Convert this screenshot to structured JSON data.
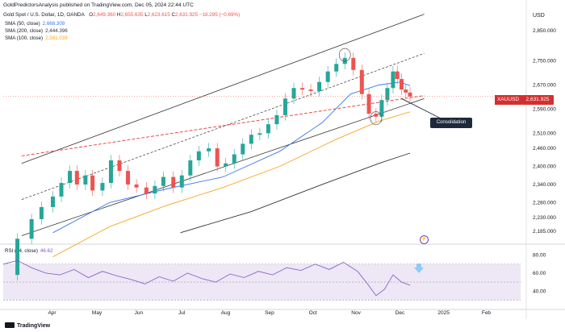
{
  "header": {
    "publisher_line": "GoldPredictorsAnalysis published on TradingView.com, Dec 05, 2024 22:44 UTC",
    "instrument": "Gold Spot / U.S. Dollar, 1D, OANDA",
    "o_label": "O",
    "o_value": "2,649.360",
    "h_label": "H",
    "h_value": "2,655.635",
    "l_label": "L",
    "l_value": "2,623.615",
    "c_label": "C",
    "c_value": "2,631.925",
    "change": "−18.295 (−0.69%)"
  },
  "indicators": {
    "sma50_label": "SMA (50, close)",
    "sma50_value": "2,668.309",
    "sma200_label": "SMA (200, close)",
    "sma200_value": "2,444.396",
    "sma100_label": "SMA (100, close)",
    "sma100_value": "2,581.039",
    "rsi_label": "RSI (14, close)",
    "rsi_value": "46.62"
  },
  "price_axis": {
    "currency": "USD"
  },
  "price_tag": {
    "symbol": "XAUUSD",
    "value": "2,631.925"
  },
  "annotation": {
    "consolidation": "Consolidation"
  },
  "footer": {
    "brand": "TradingView"
  },
  "colors": {
    "sma50": "#3b78e7",
    "sma100": "#f5a623",
    "sma200": "#333333",
    "up": "#26a69a",
    "down": "#ef5350",
    "rsi": "#7e57c2",
    "resistance": "#e53935"
  },
  "chart_data": [
    {
      "type": "line",
      "title": "",
      "y_unit": "USD",
      "y_ticks": [
        2185,
        2230,
        2280,
        2340,
        2400,
        2460,
        2510,
        2590,
        2670,
        2750,
        2850
      ],
      "y_tick_labels": [
        "2,185.000",
        "2,230.000",
        "2,280.000",
        "2,340.000",
        "2,400.000",
        "2,460.000",
        "2,510.000",
        "2,590.000",
        "2,670.000",
        "2,750.000",
        "2,850.000"
      ],
      "ylim": [
        2150,
        2920
      ],
      "x_tick_labels": [
        "Apr",
        "May",
        "Jun",
        "Jul",
        "Aug",
        "Sep",
        "Oct",
        "Nov",
        "Dec",
        "2025",
        "Feb"
      ],
      "x_tick_days": [
        60,
        91,
        121,
        152,
        182,
        213,
        244,
        274,
        305,
        335,
        366
      ],
      "xlim": [
        25,
        390
      ],
      "series": [
        {
          "name": "Gold Spot / U.S. Dollar",
          "x": [
            25,
            35,
            45,
            52,
            60,
            66,
            72,
            77,
            83,
            88,
            95,
            101,
            107,
            113,
            119,
            126,
            132,
            138,
            145,
            151,
            157,
            163,
            170,
            176,
            182,
            188,
            194,
            200,
            206,
            212,
            218,
            224,
            230,
            236,
            242,
            248,
            254,
            260,
            266,
            272,
            278,
            283,
            288,
            292,
            296,
            300,
            303,
            306,
            309,
            312
          ],
          "y": [
            2040,
            2160,
            2225,
            2265,
            2300,
            2345,
            2385,
            2340,
            2370,
            2320,
            2345,
            2420,
            2385,
            2340,
            2330,
            2310,
            2335,
            2365,
            2330,
            2370,
            2420,
            2450,
            2460,
            2400,
            2410,
            2440,
            2475,
            2505,
            2510,
            2540,
            2570,
            2625,
            2660,
            2655,
            2650,
            2680,
            2715,
            2740,
            2760,
            2720,
            2640,
            2575,
            2565,
            2620,
            2660,
            2715,
            2690,
            2655,
            2645,
            2632
          ]
        },
        {
          "name": "SMA (50, close)",
          "x": [
            60,
            100,
            140,
            180,
            220,
            250,
            270,
            290,
            305,
            312
          ],
          "y": [
            2180,
            2280,
            2325,
            2365,
            2450,
            2545,
            2640,
            2670,
            2680,
            2668
          ]
        },
        {
          "name": "SMA (100, close)",
          "x": [
            60,
            100,
            140,
            180,
            220,
            260,
            290,
            312
          ],
          "y": [
            2100,
            2200,
            2270,
            2330,
            2400,
            2490,
            2550,
            2581
          ]
        },
        {
          "name": "SMA (200, close)",
          "x": [
            150,
            200,
            250,
            290,
            312
          ],
          "y": [
            2180,
            2250,
            2340,
            2410,
            2444
          ]
        }
      ]
    },
    {
      "type": "line",
      "title": "",
      "y_ticks": [
        40,
        60,
        80
      ],
      "ylim": [
        25,
        85
      ],
      "series": [
        {
          "name": "RSI (14, close)",
          "x": [
            25,
            35,
            45,
            55,
            65,
            75,
            85,
            95,
            105,
            115,
            125,
            135,
            145,
            155,
            165,
            175,
            185,
            195,
            205,
            215,
            225,
            235,
            245,
            255,
            265,
            275,
            282,
            288,
            294,
            300,
            306,
            312
          ],
          "y": [
            70,
            74,
            66,
            60,
            58,
            64,
            55,
            62,
            57,
            53,
            48,
            56,
            51,
            60,
            54,
            50,
            59,
            55,
            62,
            58,
            66,
            63,
            70,
            64,
            72,
            62,
            48,
            35,
            42,
            58,
            50,
            46.6
          ]
        }
      ]
    }
  ]
}
